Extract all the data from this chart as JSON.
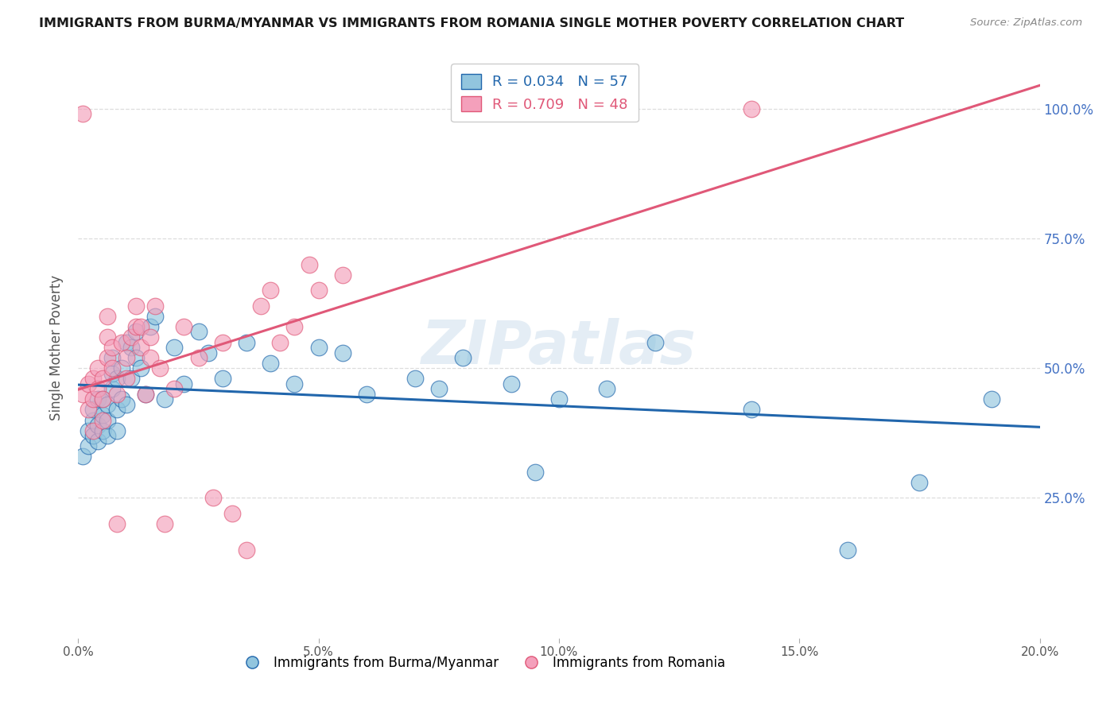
{
  "title": "IMMIGRANTS FROM BURMA/MYANMAR VS IMMIGRANTS FROM ROMANIA SINGLE MOTHER POVERTY CORRELATION CHART",
  "source": "Source: ZipAtlas.com",
  "ylabel": "Single Mother Poverty",
  "xlim": [
    0.0,
    0.2
  ],
  "ylim": [
    -0.02,
    1.1
  ],
  "yticks": [
    0.25,
    0.5,
    0.75,
    1.0
  ],
  "ytick_labels": [
    "25.0%",
    "50.0%",
    "75.0%",
    "100.0%"
  ],
  "xticks": [
    0.0,
    0.05,
    0.1,
    0.15,
    0.2
  ],
  "xtick_labels": [
    "0.0%",
    "5.0%",
    "10.0%",
    "15.0%",
    "20.0%"
  ],
  "legend_r1": "R = 0.034",
  "legend_n1": "N = 57",
  "legend_r2": "R = 0.709",
  "legend_n2": "N = 48",
  "color_blue": "#92c5de",
  "color_pink": "#f4a0bb",
  "color_blue_dark": "#2166ac",
  "color_pink_dark": "#e05878",
  "label_blue": "Immigrants from Burma/Myanmar",
  "label_pink": "Immigrants from Romania",
  "background_color": "#ffffff",
  "grid_color": "#dddddd",
  "title_color": "#1a1a1a",
  "source_color": "#888888",
  "axis_label_color": "#555555",
  "right_tick_color": "#4472c4",
  "blue_x": [
    0.001,
    0.002,
    0.002,
    0.003,
    0.003,
    0.003,
    0.004,
    0.004,
    0.004,
    0.005,
    0.005,
    0.005,
    0.006,
    0.006,
    0.006,
    0.007,
    0.007,
    0.007,
    0.008,
    0.008,
    0.008,
    0.009,
    0.009,
    0.01,
    0.01,
    0.011,
    0.011,
    0.012,
    0.012,
    0.013,
    0.014,
    0.015,
    0.016,
    0.018,
    0.02,
    0.022,
    0.025,
    0.027,
    0.03,
    0.035,
    0.04,
    0.045,
    0.05,
    0.055,
    0.06,
    0.07,
    0.075,
    0.08,
    0.09,
    0.095,
    0.1,
    0.11,
    0.12,
    0.14,
    0.16,
    0.175,
    0.19
  ],
  "blue_y": [
    0.33,
    0.35,
    0.38,
    0.37,
    0.4,
    0.42,
    0.36,
    0.39,
    0.44,
    0.38,
    0.41,
    0.44,
    0.37,
    0.4,
    0.43,
    0.46,
    0.49,
    0.52,
    0.38,
    0.42,
    0.48,
    0.44,
    0.5,
    0.43,
    0.55,
    0.48,
    0.54,
    0.52,
    0.57,
    0.5,
    0.45,
    0.58,
    0.6,
    0.44,
    0.54,
    0.47,
    0.57,
    0.53,
    0.48,
    0.55,
    0.51,
    0.47,
    0.54,
    0.53,
    0.45,
    0.48,
    0.46,
    0.52,
    0.47,
    0.3,
    0.44,
    0.46,
    0.55,
    0.42,
    0.15,
    0.28,
    0.44
  ],
  "pink_x": [
    0.001,
    0.001,
    0.002,
    0.002,
    0.003,
    0.003,
    0.003,
    0.004,
    0.004,
    0.005,
    0.005,
    0.005,
    0.006,
    0.006,
    0.006,
    0.007,
    0.007,
    0.008,
    0.008,
    0.009,
    0.01,
    0.01,
    0.011,
    0.012,
    0.012,
    0.013,
    0.013,
    0.014,
    0.015,
    0.015,
    0.016,
    0.017,
    0.018,
    0.02,
    0.022,
    0.025,
    0.028,
    0.03,
    0.032,
    0.035,
    0.038,
    0.04,
    0.042,
    0.045,
    0.048,
    0.05,
    0.055,
    0.14
  ],
  "pink_y": [
    0.99,
    0.45,
    0.42,
    0.47,
    0.38,
    0.44,
    0.48,
    0.46,
    0.5,
    0.4,
    0.44,
    0.48,
    0.52,
    0.56,
    0.6,
    0.5,
    0.54,
    0.2,
    0.45,
    0.55,
    0.48,
    0.52,
    0.56,
    0.58,
    0.62,
    0.54,
    0.58,
    0.45,
    0.52,
    0.56,
    0.62,
    0.5,
    0.2,
    0.46,
    0.58,
    0.52,
    0.25,
    0.55,
    0.22,
    0.15,
    0.62,
    0.65,
    0.55,
    0.58,
    0.7,
    0.65,
    0.68,
    1.0
  ]
}
